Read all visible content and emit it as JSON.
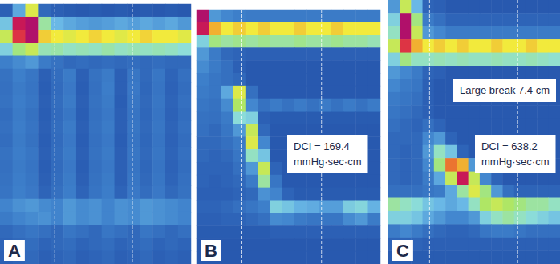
{
  "chart_data": [
    {
      "type": "heatmap",
      "label": "A",
      "tick_labels": false,
      "zlim": [
        0,
        150
      ],
      "vlines": [
        4.3,
        10.4
      ],
      "annotations": [],
      "cells": [
        [
          18,
          45,
          95,
          22,
          18,
          16,
          15,
          16,
          15,
          16,
          15,
          16,
          15,
          16,
          15
        ],
        [
          55,
          140,
          160,
          75,
          50,
          45,
          42,
          40,
          42,
          45,
          42,
          45,
          42,
          45,
          40
        ],
        [
          90,
          130,
          150,
          105,
          100,
          96,
          100,
          104,
          100,
          96,
          100,
          104,
          100,
          100,
          96
        ],
        [
          60,
          80,
          90,
          72,
          74,
          70,
          72,
          70,
          74,
          70,
          72,
          70,
          72,
          70,
          66
        ],
        [
          32,
          36,
          40,
          30,
          26,
          22,
          24,
          22,
          24,
          22,
          24,
          22,
          24,
          22,
          22
        ],
        [
          26,
          32,
          28,
          18,
          24,
          30,
          18,
          26,
          30,
          18,
          28,
          22,
          28,
          20,
          25
        ],
        [
          25,
          30,
          27,
          17,
          23,
          29,
          17,
          25,
          31,
          18,
          29,
          21,
          27,
          19,
          24
        ],
        [
          26,
          31,
          28,
          18,
          24,
          30,
          18,
          26,
          30,
          17,
          28,
          22,
          28,
          20,
          25
        ],
        [
          24,
          30,
          26,
          17,
          23,
          28,
          17,
          25,
          29,
          18,
          27,
          21,
          27,
          19,
          24
        ],
        [
          25,
          31,
          27,
          18,
          24,
          30,
          18,
          26,
          30,
          18,
          28,
          22,
          28,
          20,
          25
        ],
        [
          24,
          30,
          26,
          17,
          23,
          29,
          17,
          25,
          29,
          17,
          27,
          21,
          27,
          19,
          24
        ],
        [
          26,
          31,
          28,
          18,
          24,
          30,
          18,
          26,
          30,
          18,
          28,
          22,
          28,
          20,
          25
        ],
        [
          25,
          30,
          27,
          17,
          23,
          29,
          17,
          25,
          29,
          18,
          27,
          21,
          27,
          19,
          24
        ],
        [
          26,
          31,
          28,
          18,
          24,
          30,
          18,
          26,
          30,
          18,
          28,
          22,
          28,
          20,
          25
        ],
        [
          27,
          32,
          29,
          20,
          25,
          31,
          20,
          27,
          31,
          20,
          29,
          24,
          29,
          22,
          26
        ],
        [
          34,
          38,
          40,
          36,
          34,
          40,
          36,
          38,
          34,
          38,
          36,
          40,
          38,
          36,
          34
        ],
        [
          30,
          34,
          36,
          38,
          34,
          40,
          36,
          38,
          34,
          38,
          36,
          40,
          38,
          36,
          34
        ],
        [
          22,
          25,
          28,
          25,
          22,
          28,
          25,
          22,
          28,
          25,
          22,
          28,
          25,
          22,
          25
        ],
        [
          20,
          22,
          24,
          20,
          22,
          24,
          20,
          22,
          24,
          20,
          22,
          24,
          20,
          22,
          20
        ],
        [
          18,
          20,
          22,
          18,
          20,
          22,
          18,
          20,
          22,
          18,
          20,
          22,
          18,
          20,
          18
        ]
      ]
    },
    {
      "type": "heatmap",
      "label": "B",
      "tick_labels": false,
      "zlim": [
        0,
        150
      ],
      "vlines": [
        3.7,
        10.2
      ],
      "annotations": [
        [
          "DCI = 169.4",
          "mmHg·sec·cm"
        ]
      ],
      "cells": [
        [
          150,
          40,
          35,
          32,
          30,
          30,
          30,
          30,
          30,
          30,
          30,
          30,
          30,
          30,
          30
        ],
        [
          140,
          110,
          100,
          105,
          100,
          105,
          100,
          100,
          105,
          100,
          100,
          105,
          100,
          100,
          100
        ],
        [
          60,
          80,
          75,
          78,
          75,
          78,
          75,
          75,
          78,
          75,
          75,
          78,
          75,
          75,
          72
        ],
        [
          40,
          30,
          22,
          20,
          18,
          18,
          18,
          18,
          18,
          18,
          18,
          18,
          18,
          18,
          18
        ],
        [
          36,
          30,
          25,
          18,
          15,
          15,
          15,
          15,
          15,
          15,
          15,
          15,
          15,
          15,
          15
        ],
        [
          32,
          28,
          25,
          22,
          15,
          15,
          15,
          15,
          15,
          15,
          15,
          15,
          15,
          15,
          15
        ],
        [
          30,
          28,
          45,
          95,
          25,
          15,
          15,
          15,
          15,
          15,
          15,
          15,
          15,
          15,
          15
        ],
        [
          28,
          26,
          36,
          85,
          35,
          26,
          30,
          26,
          30,
          26,
          30,
          26,
          30,
          26,
          30
        ],
        [
          26,
          25,
          30,
          65,
          60,
          18,
          16,
          16,
          16,
          16,
          16,
          16,
          16,
          16,
          16
        ],
        [
          25,
          22,
          28,
          40,
          90,
          22,
          15,
          15,
          15,
          15,
          15,
          15,
          15,
          15,
          15
        ],
        [
          22,
          22,
          25,
          30,
          95,
          35,
          15,
          15,
          15,
          15,
          15,
          15,
          15,
          15,
          15
        ],
        [
          22,
          20,
          22,
          28,
          70,
          55,
          15,
          15,
          15,
          15,
          15,
          15,
          15,
          15,
          15
        ],
        [
          20,
          20,
          20,
          25,
          40,
          90,
          20,
          15,
          15,
          15,
          15,
          15,
          15,
          15,
          15
        ],
        [
          20,
          18,
          20,
          22,
          30,
          75,
          28,
          15,
          15,
          15,
          15,
          15,
          15,
          15,
          15
        ],
        [
          18,
          18,
          18,
          20,
          22,
          38,
          34,
          20,
          16,
          16,
          16,
          16,
          16,
          16,
          16
        ],
        [
          20,
          20,
          22,
          25,
          28,
          32,
          60,
          55,
          48,
          46,
          42,
          42,
          58,
          62,
          48
        ],
        [
          18,
          18,
          20,
          20,
          22,
          25,
          36,
          35,
          30,
          28,
          28,
          28,
          36,
          40,
          30
        ],
        [
          16,
          16,
          16,
          16,
          16,
          16,
          18,
          18,
          18,
          18,
          18,
          18,
          18,
          18,
          18
        ],
        [
          15,
          15,
          15,
          15,
          15,
          15,
          15,
          15,
          15,
          15,
          15,
          15,
          15,
          15,
          15
        ],
        [
          15,
          15,
          15,
          15,
          15,
          15,
          15,
          15,
          15,
          15,
          15,
          15,
          15,
          15,
          15
        ]
      ]
    },
    {
      "type": "heatmap",
      "label": "C",
      "tick_labels": false,
      "zlim": [
        0,
        150
      ],
      "vlines": [
        3.6,
        11.3
      ],
      "annotations": [
        [
          "Large break 7.4 cm"
        ],
        [
          "DCI = 638.2",
          "mmHg·sec·cm"
        ]
      ],
      "cells": [
        [
          40,
          90,
          50,
          20,
          18,
          15,
          15,
          15,
          15,
          15,
          15,
          15,
          15,
          15,
          15
        ],
        [
          60,
          160,
          80,
          30,
          25,
          20,
          20,
          20,
          20,
          20,
          20,
          20,
          20,
          20,
          20
        ],
        [
          70,
          150,
          90,
          40,
          35,
          30,
          30,
          30,
          30,
          30,
          30,
          30,
          30,
          30,
          30
        ],
        [
          90,
          130,
          110,
          100,
          105,
          100,
          105,
          100,
          100,
          105,
          100,
          100,
          105,
          100,
          100
        ],
        [
          60,
          80,
          70,
          70,
          72,
          70,
          72,
          70,
          70,
          72,
          70,
          70,
          72,
          70,
          68
        ],
        [
          40,
          35,
          30,
          20,
          18,
          15,
          15,
          15,
          15,
          15,
          15,
          15,
          15,
          15,
          15
        ],
        [
          35,
          30,
          28,
          18,
          15,
          15,
          15,
          15,
          15,
          15,
          15,
          15,
          15,
          15,
          15
        ],
        [
          30,
          28,
          25,
          18,
          15,
          15,
          15,
          15,
          15,
          15,
          15,
          15,
          15,
          15,
          15
        ],
        [
          28,
          25,
          22,
          18,
          15,
          15,
          15,
          15,
          15,
          15,
          15,
          15,
          15,
          15,
          15
        ],
        [
          25,
          22,
          20,
          25,
          20,
          15,
          15,
          15,
          15,
          15,
          15,
          15,
          15,
          15,
          15
        ],
        [
          22,
          22,
          22,
          35,
          40,
          20,
          15,
          15,
          15,
          15,
          15,
          15,
          15,
          15,
          15
        ],
        [
          22,
          20,
          22,
          40,
          70,
          55,
          20,
          15,
          15,
          15,
          15,
          15,
          15,
          15,
          15
        ],
        [
          22,
          20,
          22,
          35,
          80,
          120,
          110,
          40,
          20,
          15,
          15,
          15,
          15,
          15,
          15
        ],
        [
          22,
          20,
          22,
          30,
          45,
          90,
          140,
          90,
          35,
          20,
          15,
          15,
          15,
          15,
          15
        ],
        [
          25,
          25,
          25,
          28,
          30,
          45,
          75,
          95,
          80,
          40,
          25,
          20,
          20,
          20,
          20
        ],
        [
          75,
          70,
          65,
          55,
          50,
          45,
          50,
          70,
          85,
          90,
          85,
          80,
          75,
          75,
          70
        ],
        [
          60,
          60,
          55,
          45,
          40,
          35,
          35,
          40,
          60,
          70,
          75,
          70,
          65,
          60,
          55
        ],
        [
          30,
          35,
          30,
          25,
          22,
          20,
          20,
          22,
          28,
          30,
          30,
          28,
          25,
          25,
          25
        ],
        [
          20,
          20,
          20,
          18,
          18,
          18,
          18,
          18,
          18,
          18,
          18,
          18,
          18,
          18,
          18
        ],
        [
          16,
          16,
          16,
          16,
          16,
          16,
          16,
          16,
          16,
          16,
          16,
          16,
          16,
          16,
          16
        ]
      ]
    }
  ]
}
